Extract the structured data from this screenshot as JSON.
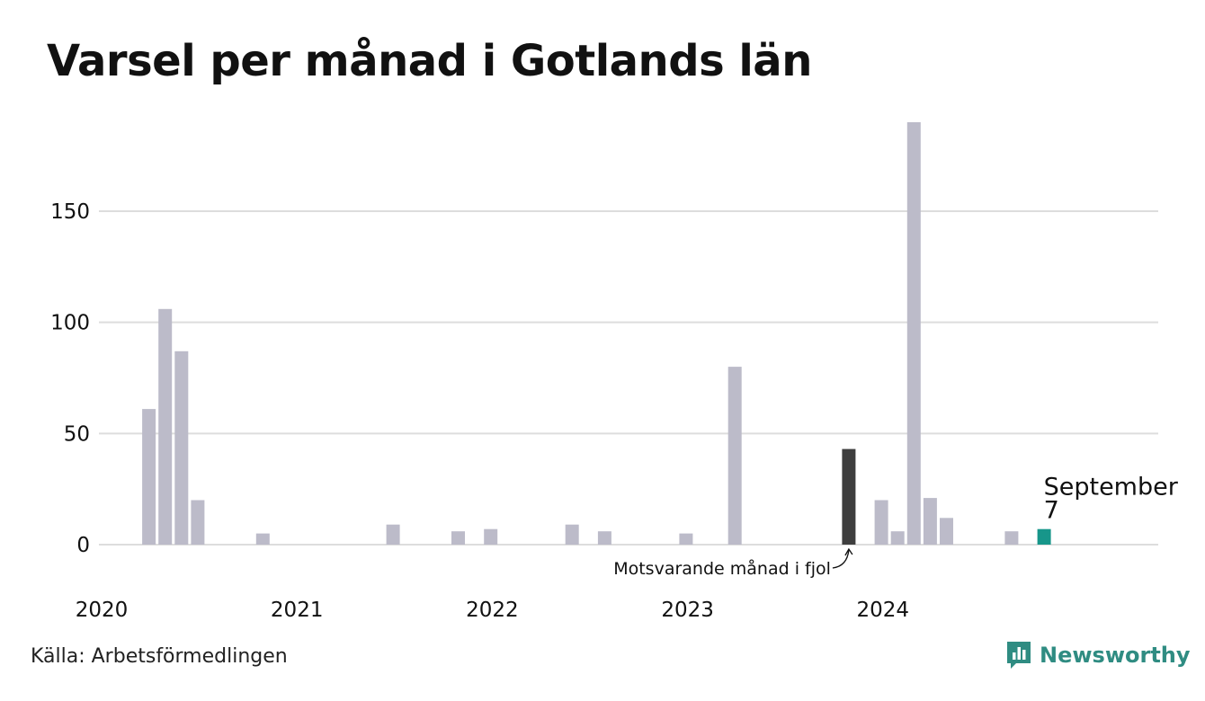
{
  "chart_data": {
    "type": "bar",
    "title": "Varsel per månad i Gotlands län",
    "xlabel": "",
    "ylabel": "",
    "x_start": "2020-01",
    "x_end": "2024-12",
    "x_ticks": [
      "2020",
      "2021",
      "2022",
      "2023",
      "2024"
    ],
    "y_ticks": [
      0,
      50,
      100,
      150
    ],
    "ylim": [
      0,
      190
    ],
    "grid": true,
    "series": [
      {
        "values": [
          {
            "month": "2020-02",
            "value": 61
          },
          {
            "month": "2020-03",
            "value": 106
          },
          {
            "month": "2020-04",
            "value": 87
          },
          {
            "month": "2020-05",
            "value": 20
          },
          {
            "month": "2020-09",
            "value": 5
          },
          {
            "month": "2021-05",
            "value": 9
          },
          {
            "month": "2021-09",
            "value": 6
          },
          {
            "month": "2021-11",
            "value": 7
          },
          {
            "month": "2022-04",
            "value": 9
          },
          {
            "month": "2022-06",
            "value": 6
          },
          {
            "month": "2022-11",
            "value": 5
          },
          {
            "month": "2023-02",
            "value": 80
          },
          {
            "month": "2023-09",
            "value": 43,
            "highlight": "previous-year"
          },
          {
            "month": "2023-11",
            "value": 20
          },
          {
            "month": "2023-12",
            "value": 6
          },
          {
            "month": "2024-01",
            "value": 190
          },
          {
            "month": "2024-02",
            "value": 21
          },
          {
            "month": "2024-03",
            "value": 12
          },
          {
            "month": "2024-07",
            "value": 6
          },
          {
            "month": "2024-09",
            "value": 7,
            "highlight": "current"
          }
        ]
      }
    ],
    "colors": {
      "default": "#bcbbc9",
      "previous_year": "#3e3e3e",
      "current": "#17968a",
      "grid": "#dddddd"
    },
    "annotations": {
      "current_label": "September",
      "current_value": "7",
      "previous_year_label": "Motsvarande månad i fjol"
    }
  },
  "footer": {
    "source": "Källa: Arbetsförmedlingen",
    "brand": "Newsworthy",
    "brand_icon": "newsworthy-logo-icon"
  }
}
